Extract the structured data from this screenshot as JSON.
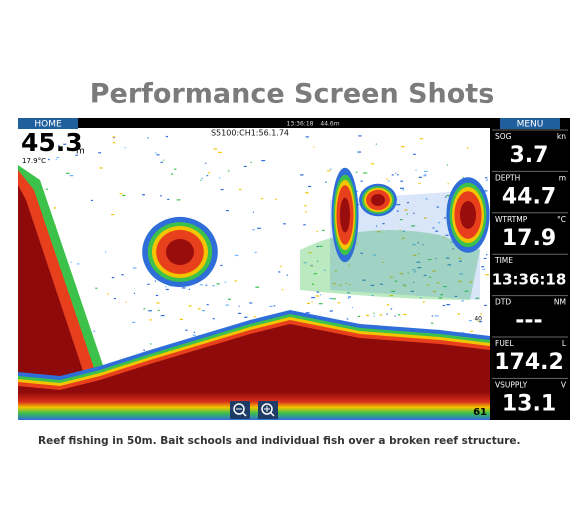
{
  "header": {
    "title": "Performance Screen Shots"
  },
  "screen": {
    "home": "HOME",
    "menu": "MENU",
    "status": {
      "time": "13:36:18",
      "depth": "44.6m"
    },
    "channel": "S5100:CH1:56.1.74",
    "depth_readout": {
      "value": "45.3",
      "unit": "m",
      "temperature": "17.9°C"
    },
    "scale": [
      "40",
      "61"
    ],
    "panels": [
      {
        "label": "SOG",
        "unit": "kn",
        "value": "3.7"
      },
      {
        "label": "DEPTH",
        "unit": "m",
        "value": "44.7"
      },
      {
        "label": "WTRTMP",
        "unit": "°C",
        "value": "17.9"
      },
      {
        "label": "TIME",
        "unit": "",
        "value": "13:36:18"
      },
      {
        "label": "DTD",
        "unit": "NM",
        "value": "---"
      },
      {
        "label": "FUEL",
        "unit": "L",
        "value": "174.2"
      },
      {
        "label": "VSUPPLY",
        "unit": "V",
        "value": "13.1"
      }
    ]
  },
  "caption": "Reef fishing in 50m. Bait schools and individual fish over a broken reef structure."
}
